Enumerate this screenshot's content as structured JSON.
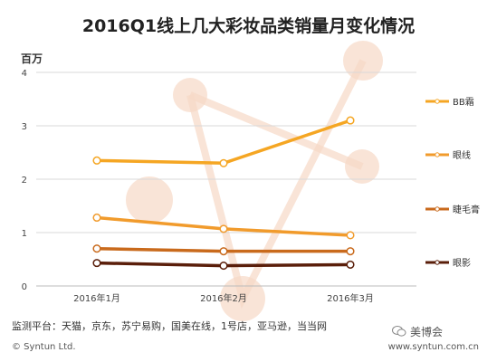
{
  "chart_data": {
    "type": "line",
    "title": "2016Q1线上几大彩妆品类销量月变化情况",
    "ylabel": "百万",
    "categories": [
      "2016年1月",
      "2016年2月",
      "2016年3月"
    ],
    "ylim": [
      0,
      4
    ],
    "yticks": [
      0,
      1,
      2,
      3,
      4
    ],
    "grid": true,
    "legend_position": "right",
    "series": [
      {
        "name": "BB霜",
        "values": [
          2.35,
          2.3,
          3.1
        ],
        "color": "#f5a623"
      },
      {
        "name": "眼线",
        "values": [
          1.28,
          1.07,
          0.95
        ],
        "color": "#f19b2c"
      },
      {
        "name": "睫毛膏",
        "values": [
          0.7,
          0.65,
          0.65
        ],
        "color": "#c96a1c"
      },
      {
        "name": "眼影",
        "values": [
          0.43,
          0.38,
          0.4
        ],
        "color": "#5a1e0a"
      }
    ]
  },
  "source": "监测平台：天猫，京东，苏宁易购，国美在线，1号店，亚马逊，当当网",
  "copyright": "© Syntun Ltd.",
  "website": "www.syntun.com.cn",
  "wechat": "美博会"
}
